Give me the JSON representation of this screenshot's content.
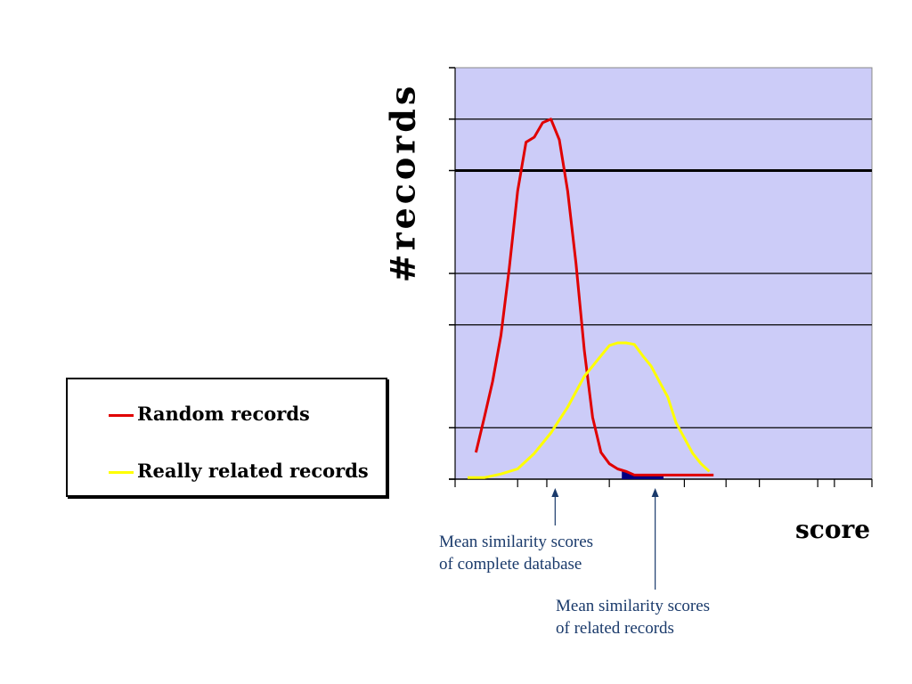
{
  "chart_data": {
    "type": "line",
    "title": "",
    "xlabel": "score",
    "ylabel": "#records",
    "xlim": [
      0,
      100
    ],
    "ylim": [
      0,
      800
    ],
    "y_gridlines": [
      100,
      300,
      400,
      600,
      700
    ],
    "y_emphasized_gridline": 600,
    "x_ticks": [
      0,
      15,
      22,
      37,
      55,
      65,
      73,
      87,
      91,
      100
    ],
    "grid": true,
    "legend_position": "left",
    "series": [
      {
        "name": "Random records",
        "color": "#e00000",
        "x": [
          5,
          7,
          9,
          11,
          13,
          15,
          17,
          19,
          21,
          23,
          25,
          27,
          29,
          31,
          33,
          35,
          37,
          39,
          41,
          43,
          45,
          47,
          49,
          50,
          52,
          54,
          56,
          58,
          60,
          62
        ],
        "y": [
          52,
          120,
          190,
          280,
          410,
          560,
          655,
          665,
          693,
          700,
          660,
          560,
          420,
          250,
          120,
          52,
          30,
          20,
          15,
          8,
          8,
          8,
          8,
          8,
          8,
          8,
          8,
          8,
          8,
          8
        ]
      },
      {
        "name": "Really related records",
        "color": "#ffff00",
        "x": [
          3,
          7,
          11,
          15,
          19,
          23,
          27,
          31,
          35,
          37,
          39,
          41,
          43,
          45,
          47,
          49,
          51,
          53,
          55,
          57,
          59,
          61
        ],
        "y": [
          3,
          3,
          10,
          20,
          50,
          90,
          140,
          200,
          240,
          260,
          265,
          265,
          262,
          240,
          220,
          190,
          160,
          110,
          80,
          50,
          30,
          15
        ]
      }
    ],
    "shaded_region": {
      "x_from": 40,
      "x_to": 50,
      "color": "#000080"
    },
    "annotations": [
      {
        "text_lines": [
          "Mean similarity scores",
          "of complete database"
        ],
        "arrow_x": 24
      },
      {
        "text_lines": [
          "Mean similarity scores",
          "of related records"
        ],
        "arrow_x": 48
      }
    ],
    "colors": {
      "plot_background": "#ccccf8",
      "annotation_text": "#1a3a6b"
    }
  }
}
